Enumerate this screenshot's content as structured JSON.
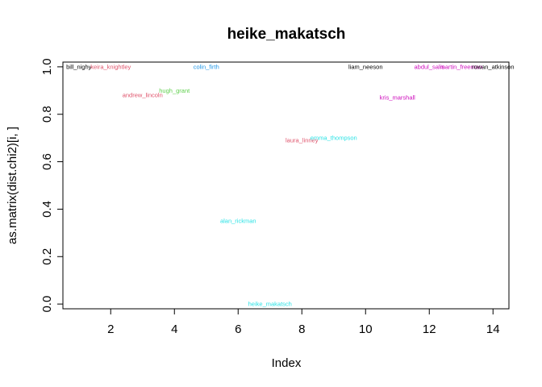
{
  "chart_data": {
    "type": "scatter",
    "title": "heike_makatsch",
    "xlabel": "Index",
    "ylabel": "as.matrix(dist.chi2)[i, ]",
    "xlim": [
      0.5,
      14.5
    ],
    "ylim": [
      -0.02,
      1.02
    ],
    "x_ticks": [
      2,
      4,
      6,
      8,
      10,
      12,
      14
    ],
    "y_ticks": [
      0.0,
      0.2,
      0.4,
      0.6,
      0.8,
      1.0
    ],
    "x_tick_labels": [
      "2",
      "4",
      "6",
      "8",
      "10",
      "12",
      "14"
    ],
    "y_tick_labels": [
      "0.0",
      "0.2",
      "0.4",
      "0.6",
      "0.8",
      "1.0"
    ],
    "grid": false,
    "points": [
      {
        "label": "bill_nighy",
        "x": 1,
        "y": 1.0,
        "color": "#000000"
      },
      {
        "label": "keira_knightley",
        "x": 2,
        "y": 1.0,
        "color": "#DF536B"
      },
      {
        "label": "andrew_lincoln",
        "x": 3,
        "y": 0.88,
        "color": "#DF536B"
      },
      {
        "label": "hugh_grant",
        "x": 4,
        "y": 0.9,
        "color": "#61D04F"
      },
      {
        "label": "colin_firth",
        "x": 5,
        "y": 1.0,
        "color": "#2297E6"
      },
      {
        "label": "alan_rickman",
        "x": 6,
        "y": 0.35,
        "color": "#28E2E5"
      },
      {
        "label": "heike_makatsch",
        "x": 7,
        "y": 0.0,
        "color": "#28E2E5"
      },
      {
        "label": "laura_linney",
        "x": 8,
        "y": 0.69,
        "color": "#DF536B"
      },
      {
        "label": "emma_thompson",
        "x": 9,
        "y": 0.7,
        "color": "#28E2E5"
      },
      {
        "label": "liam_neeson",
        "x": 10,
        "y": 1.0,
        "color": "#000000"
      },
      {
        "label": "kris_marshall",
        "x": 11,
        "y": 0.87,
        "color": "#CD0BBC"
      },
      {
        "label": "abdul_salis",
        "x": 12,
        "y": 1.0,
        "color": "#CD0BBC"
      },
      {
        "label": "martin_freeman",
        "x": 13,
        "y": 1.0,
        "color": "#CD0BBC"
      },
      {
        "label": "rowan_atkinson",
        "x": 14,
        "y": 1.0,
        "color": "#000000"
      }
    ]
  }
}
